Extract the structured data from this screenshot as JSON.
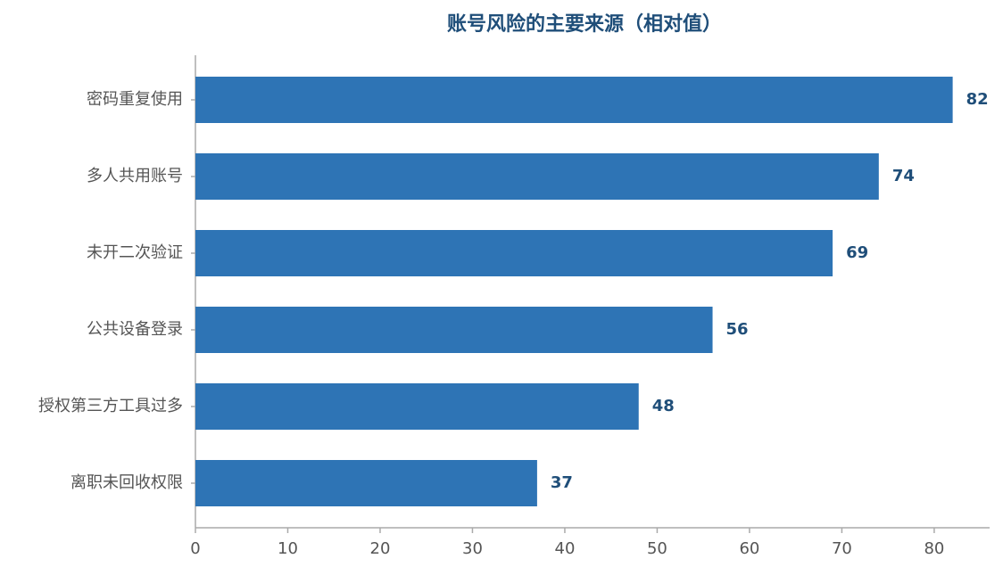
{
  "chart_data": {
    "type": "hbar",
    "title": "账号风险的主要来源（相对值）",
    "categories": [
      "密码重复使用",
      "多人共用账号",
      "未开二次验证",
      "公共设备登录",
      "授权第三方工具过多",
      "离职未回收权限"
    ],
    "values": [
      82,
      74,
      69,
      56,
      48,
      37
    ],
    "color": "#2e74b5",
    "xlim": [
      0,
      86
    ],
    "xticks": [
      0,
      10,
      20,
      30,
      40,
      50,
      60,
      70,
      80
    ],
    "grid": false
  }
}
